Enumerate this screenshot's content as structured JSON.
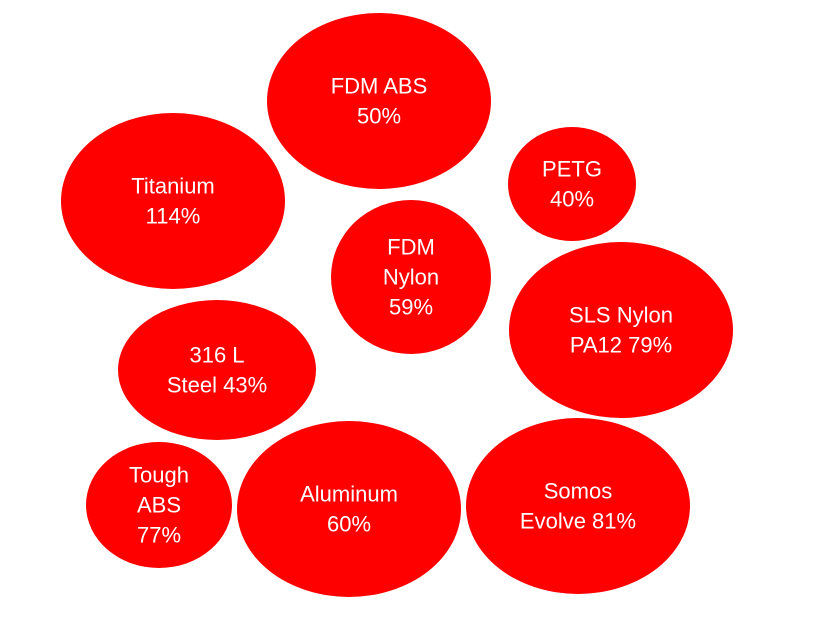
{
  "chart_data": {
    "type": "bubble",
    "title": "",
    "color": "#ff0000",
    "label_color": "#ffffff",
    "items": [
      {
        "name": "FDM ABS",
        "value": 50,
        "label_lines": [
          "FDM ABS",
          "50%"
        ]
      },
      {
        "name": "PETG",
        "value": 40,
        "label_lines": [
          "PETG",
          "40%"
        ]
      },
      {
        "name": "Titanium",
        "value": 114,
        "label_lines": [
          "Titanium",
          "114%"
        ]
      },
      {
        "name": "FDM Nylon",
        "value": 59,
        "label_lines": [
          "FDM",
          "Nylon",
          "59%"
        ]
      },
      {
        "name": "SLS Nylon PA12",
        "value": 79,
        "label_lines": [
          "SLS Nylon",
          "PA12 79%"
        ]
      },
      {
        "name": "316 L Steel",
        "value": 43,
        "label_lines": [
          "316 L",
          "Steel 43%"
        ]
      },
      {
        "name": "Tough ABS",
        "value": 77,
        "label_lines": [
          "Tough",
          "ABS",
          "77%"
        ]
      },
      {
        "name": "Aluminum",
        "value": 60,
        "label_lines": [
          "Aluminum",
          "60%"
        ]
      },
      {
        "name": "Somos Evolve",
        "value": 81,
        "label_lines": [
          "Somos",
          "Evolve 81%"
        ]
      }
    ]
  }
}
